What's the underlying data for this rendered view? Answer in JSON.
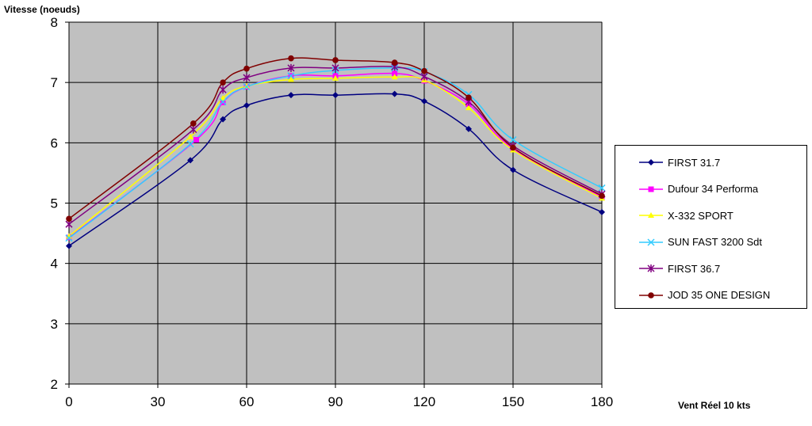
{
  "chart_data": {
    "type": "line",
    "ylabel": "Vitesse (noeuds)",
    "xlabel": "Vent Réel 10  kts",
    "xlim": [
      0,
      180
    ],
    "ylim": [
      2,
      8
    ],
    "x_ticks": [
      0,
      30,
      60,
      90,
      120,
      150,
      180
    ],
    "y_ticks": [
      2,
      3,
      4,
      5,
      6,
      7,
      8
    ],
    "grid": true,
    "legend_position": "right",
    "plot_background": "#c0c0c0",
    "series": [
      {
        "name": "FIRST 31.7",
        "color": "#000080",
        "marker": "diamond",
        "x": [
          0,
          41,
          52,
          60,
          75,
          90,
          110,
          120,
          135,
          150,
          180
        ],
        "y": [
          4.29,
          5.71,
          6.39,
          6.62,
          6.79,
          6.79,
          6.81,
          6.69,
          6.23,
          5.55,
          4.85
        ]
      },
      {
        "name": "Dufour 34 Performa",
        "color": "#ff00ff",
        "marker": "square",
        "x": [
          0,
          43,
          52,
          60,
          75,
          90,
          110,
          120,
          135,
          150,
          180
        ],
        "y": [
          4.43,
          6.05,
          6.67,
          6.93,
          7.11,
          7.11,
          7.15,
          7.03,
          6.64,
          5.9,
          5.1
        ]
      },
      {
        "name": "X-332 SPORT",
        "color": "#ffff00",
        "marker": "triangle",
        "x": [
          0,
          41,
          52,
          60,
          75,
          90,
          110,
          120,
          135,
          150,
          180
        ],
        "y": [
          4.45,
          6.1,
          6.74,
          6.94,
          7.05,
          7.07,
          7.09,
          7.04,
          6.58,
          5.88,
          5.08
        ]
      },
      {
        "name": "SUN FAST 3200 Sdt",
        "color": "#33ccff",
        "marker": "x",
        "x": [
          0,
          41,
          52,
          60,
          75,
          90,
          110,
          120,
          135,
          150,
          180
        ],
        "y": [
          4.42,
          5.98,
          6.68,
          6.93,
          7.11,
          7.2,
          7.24,
          7.18,
          6.8,
          6.05,
          5.25
        ]
      },
      {
        "name": "FIRST 36.7",
        "color": "#800080",
        "marker": "star",
        "x": [
          0,
          42,
          52,
          60,
          75,
          90,
          110,
          120,
          135,
          150,
          180
        ],
        "y": [
          4.65,
          6.22,
          6.88,
          7.08,
          7.24,
          7.24,
          7.26,
          7.1,
          6.68,
          5.95,
          5.15
        ]
      },
      {
        "name": "JOD 35 ONE DESIGN",
        "color": "#800000",
        "marker": "circle",
        "x": [
          0,
          42,
          52,
          60,
          75,
          90,
          110,
          120,
          135,
          150,
          180
        ],
        "y": [
          4.74,
          6.32,
          7.0,
          7.23,
          7.4,
          7.37,
          7.33,
          7.19,
          6.75,
          5.92,
          5.12
        ]
      }
    ]
  }
}
